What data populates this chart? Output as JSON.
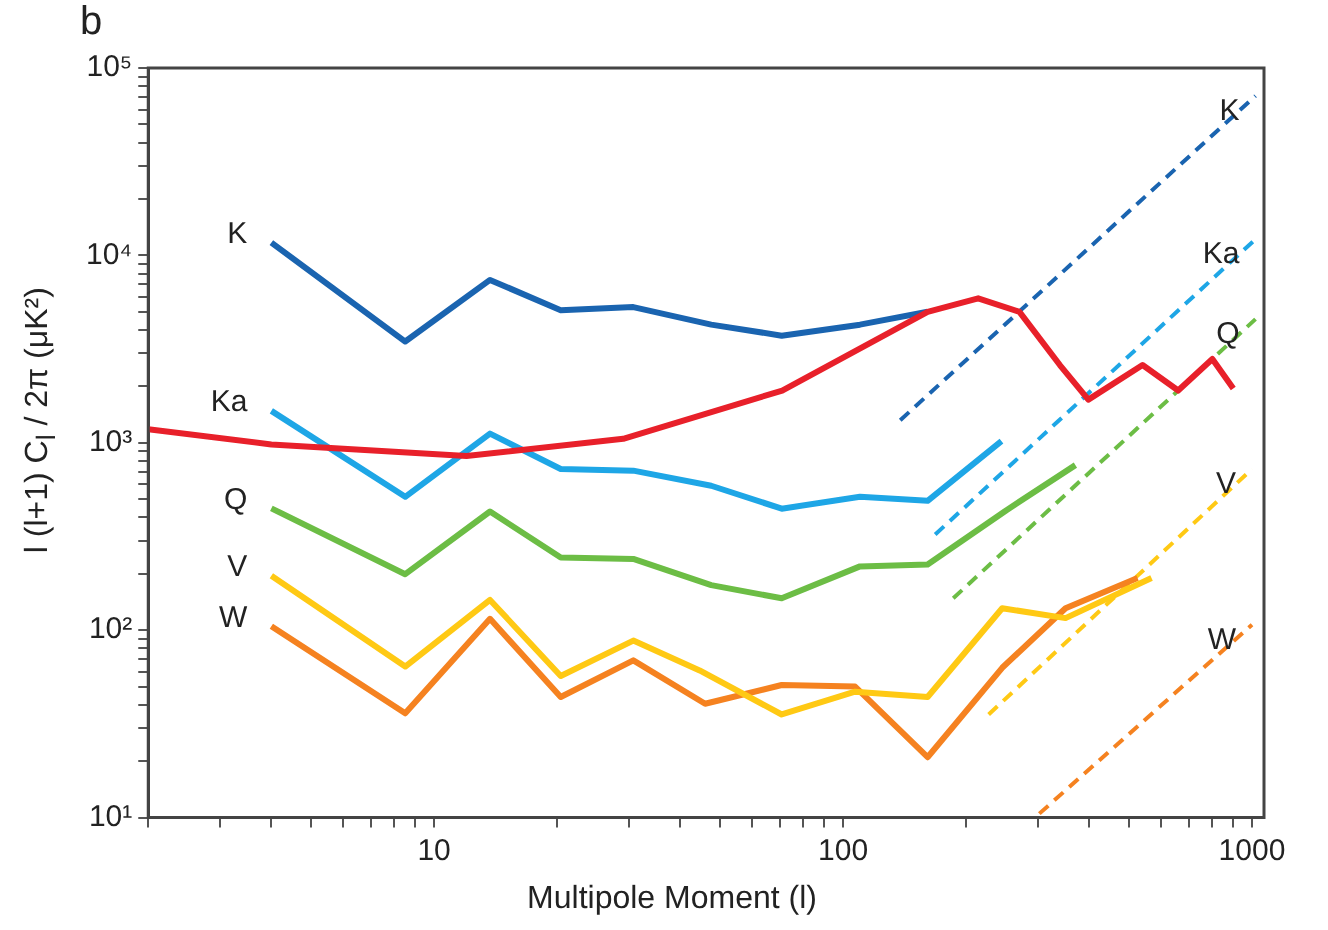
{
  "chart_data": {
    "type": "line",
    "log": "xy",
    "xlabel": "Multipole Moment (l)",
    "ylabel": "l (l+1) C$_{l}$ / 2π (μK²)",
    "annotations": [
      "b"
    ],
    "legend": false,
    "grid": false,
    "xlim": [
      2,
      1070
    ],
    "ylim": [
      10,
      100000
    ],
    "xticks": [
      {
        "value": 2,
        "label": null
      },
      {
        "value": 3,
        "label": null
      },
      {
        "value": 4,
        "label": null
      },
      {
        "value": 5,
        "label": null
      },
      {
        "value": 6,
        "label": null
      },
      {
        "value": 7,
        "label": null
      },
      {
        "value": 8,
        "label": null
      },
      {
        "value": 9,
        "label": null
      },
      10,
      {
        "value": 20,
        "label": null
      },
      {
        "value": 30,
        "label": null
      },
      {
        "value": 40,
        "label": null
      },
      {
        "value": 50,
        "label": null
      },
      {
        "value": 60,
        "label": null
      },
      {
        "value": 70,
        "label": null
      },
      {
        "value": 80,
        "label": null
      },
      {
        "value": 90,
        "label": null
      },
      100,
      {
        "value": 200,
        "label": null
      },
      {
        "value": 300,
        "label": null
      },
      {
        "value": 400,
        "label": null
      },
      {
        "value": 500,
        "label": null
      },
      {
        "value": 600,
        "label": null
      },
      {
        "value": 700,
        "label": null
      },
      {
        "value": 800,
        "label": null
      },
      {
        "value": 900,
        "label": null
      },
      1000
    ],
    "yticks": [
      {
        "value": 10,
        "label": "10¹"
      },
      {
        "value": 20,
        "label": null
      },
      {
        "value": 30,
        "label": null
      },
      {
        "value": 40,
        "label": null
      },
      {
        "value": 50,
        "label": null
      },
      {
        "value": 60,
        "label": null
      },
      {
        "value": 70,
        "label": null
      },
      {
        "value": 80,
        "label": null
      },
      {
        "value": 90,
        "label": null
      },
      {
        "value": 100,
        "label": "10²"
      },
      {
        "value": 200,
        "label": null
      },
      {
        "value": 300,
        "label": null
      },
      {
        "value": 400,
        "label": null
      },
      {
        "value": 500,
        "label": null
      },
      {
        "value": 600,
        "label": null
      },
      {
        "value": 700,
        "label": null
      },
      {
        "value": 800,
        "label": null
      },
      {
        "value": 900,
        "label": null
      },
      {
        "value": 1000,
        "label": "10³"
      },
      {
        "value": 2000,
        "label": null
      },
      {
        "value": 3000,
        "label": null
      },
      {
        "value": 4000,
        "label": null
      },
      {
        "value": 5000,
        "label": null
      },
      {
        "value": 6000,
        "label": null
      },
      {
        "value": 7000,
        "label": null
      },
      {
        "value": 8000,
        "label": null
      },
      {
        "value": 9000,
        "label": null
      },
      {
        "value": 10000,
        "label": "10⁴"
      },
      {
        "value": 20000,
        "label": null
      },
      {
        "value": 30000,
        "label": null
      },
      {
        "value": 40000,
        "label": null
      },
      {
        "value": 50000,
        "label": null
      },
      {
        "value": 60000,
        "label": null
      },
      {
        "value": 70000,
        "label": null
      },
      {
        "value": 80000,
        "label": null
      },
      {
        "value": 90000,
        "label": null
      },
      {
        "value": 100000,
        "label": "10⁵"
      }
    ],
    "series": [
      {
        "color": "#e8202a",
        "x": [
          2,
          4,
          12,
          29,
          71,
          161,
          214,
          270,
          339,
          398,
          540,
          660,
          800,
          900
        ],
        "values": [
          1180,
          980,
          850,
          1050,
          1900,
          5000,
          5900,
          5000,
          2600,
          1700,
          2600,
          1900,
          2800,
          1950
        ]
      },
      {
        "name": "K",
        "color": "#1a64b0",
        "x": [
          4,
          8.5,
          13.7,
          20.4,
          30.7,
          47.6,
          70.8,
          110,
          161
        ],
        "values": [
          11700,
          3470,
          7400,
          5100,
          5300,
          4270,
          3730,
          4270,
          5000
        ]
      },
      {
        "name": "Ka",
        "color": "#1ea6e6",
        "x": [
          4,
          8.5,
          13.7,
          20.4,
          30.7,
          47.6,
          70.8,
          110,
          161,
          244
        ],
        "values": [
          1480,
          515,
          1120,
          725,
          710,
          590,
          445,
          515,
          490,
          1020
        ]
      },
      {
        "name": "Q",
        "color": "#6cbd45",
        "x": [
          4,
          8.5,
          13.7,
          20.4,
          30.7,
          47.6,
          70.8,
          110,
          161,
          251,
          370
        ],
        "values": [
          447,
          199,
          430,
          244,
          240,
          174,
          148,
          219,
          224,
          437,
          760
        ]
      },
      {
        "name": "V",
        "color": "#ffc914",
        "x": [
          4,
          8.5,
          13.7,
          20.4,
          30.7,
          44.6,
          70.8,
          107,
          161,
          245,
          350,
          568
        ],
        "values": [
          195,
          64,
          145,
          57,
          88,
          61,
          35.5,
          47,
          44,
          131,
          116,
          190
        ]
      },
      {
        "name": "W",
        "color": "#f58220",
        "x": [
          4,
          8.5,
          13.7,
          20.4,
          30.7,
          46,
          70.8,
          107,
          161,
          245,
          350,
          525
        ],
        "values": [
          105,
          36,
          115,
          44,
          69,
          40.5,
          51,
          50,
          21,
          63,
          131,
          190
        ]
      },
      {
        "name": "K",
        "color": "#1a64b0",
        "line_style": "dashed",
        "x": [
          138,
          1020
        ],
        "values": [
          1320,
          71000
        ]
      },
      {
        "name": "Ka",
        "color": "#1ea6e6",
        "line_style": "dashed",
        "x": [
          168,
          1020
        ],
        "values": [
          324,
          12200
        ]
      },
      {
        "name": "Q",
        "color": "#6cbd45",
        "line_style": "dashed",
        "x": [
          186,
          1020
        ],
        "values": [
          148,
          4570
        ]
      },
      {
        "name": "V",
        "color": "#ffc914",
        "line_style": "dashed",
        "x": [
          227,
          1000
        ],
        "values": [
          35.5,
          725
        ]
      },
      {
        "name": "W",
        "color": "#f58220",
        "line_style": "dashed",
        "x": [
          302,
          1000
        ],
        "values": [
          10.5,
          107
        ]
      }
    ]
  }
}
